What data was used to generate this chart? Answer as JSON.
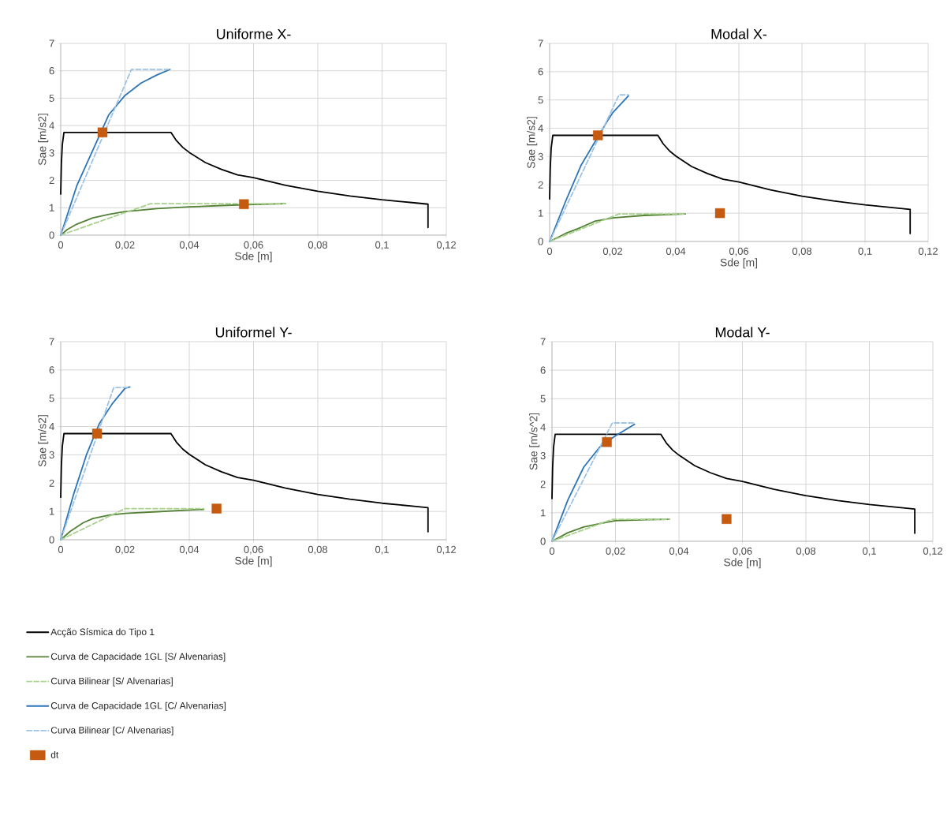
{
  "chart_data": [
    {
      "type": "line",
      "title": "Uniforme X-",
      "xlabel": "Sde [m]",
      "ylabel": "Sae [m/s2]",
      "xlim": [
        0,
        0.12
      ],
      "ylim": [
        0,
        7
      ],
      "grid": true,
      "xticks": [
        0,
        {
          "value": 0.02,
          "label": "0,02"
        },
        {
          "value": 0.04,
          "label": "0,04"
        },
        {
          "value": 0.06,
          "label": "0,06"
        },
        {
          "value": 0.08,
          "label": "0,08"
        },
        {
          "value": 0.1,
          "label": "0,1"
        },
        {
          "value": 0.12,
          "label": "0,12"
        }
      ],
      "yticks": [
        0,
        1,
        2,
        3,
        4,
        5,
        6,
        7
      ],
      "series": [
        {
          "color": "#000000",
          "x": [
            0,
            0.0002,
            0.0005,
            0.001,
            0.0343,
            0.036,
            0.038,
            0.04,
            0.045,
            0.05,
            0.055,
            0.06,
            0.07,
            0.08,
            0.09,
            0.1,
            0.11,
            0.1143,
            0.1143
          ],
          "values": [
            1.5,
            2.6,
            3.3,
            3.75,
            3.75,
            3.45,
            3.2,
            3.02,
            2.65,
            2.4,
            2.2,
            2.1,
            1.82,
            1.6,
            1.43,
            1.29,
            1.18,
            1.13,
            0.28
          ]
        },
        {
          "color": "#548235",
          "x": [
            0,
            0.002,
            0.005,
            0.01,
            0.015,
            0.02,
            0.03,
            0.04,
            0.05,
            0.06,
            0.07
          ],
          "values": [
            0,
            0.2,
            0.4,
            0.63,
            0.76,
            0.86,
            0.97,
            1.03,
            1.08,
            1.12,
            1.15
          ]
        },
        {
          "color": "#a9d18e",
          "line_style": "dashed",
          "x": [
            0,
            0.028,
            0.07
          ],
          "values": [
            0,
            1.15,
            1.15
          ]
        },
        {
          "color": "#2e75b6",
          "x": [
            0,
            0.005,
            0.01,
            0.015,
            0.02,
            0.025,
            0.03,
            0.034
          ],
          "values": [
            0,
            1.8,
            3.1,
            4.4,
            5.1,
            5.55,
            5.85,
            6.05
          ]
        },
        {
          "color": "#9dc3e6",
          "line_style": "dashed",
          "x": [
            0,
            0.022,
            0.034
          ],
          "values": [
            0,
            6.05,
            6.05
          ]
        },
        {
          "type": "scatter",
          "marker": "square",
          "color": "#c55a11",
          "x": [
            0.013,
            0.057
          ],
          "values": [
            3.75,
            1.13
          ]
        }
      ]
    },
    {
      "type": "line",
      "title": "Modal X-",
      "xlabel": "Sde [m]",
      "ylabel": "Sae [m/s2]",
      "xlim": [
        0,
        0.12
      ],
      "ylim": [
        0,
        7
      ],
      "grid": true,
      "xticks": [
        0,
        {
          "value": 0.02,
          "label": "0,02"
        },
        {
          "value": 0.04,
          "label": "0,04"
        },
        {
          "value": 0.06,
          "label": "0,06"
        },
        {
          "value": 0.08,
          "label": "0,08"
        },
        {
          "value": 0.1,
          "label": "0,1"
        },
        {
          "value": 0.12,
          "label": "0,12"
        }
      ],
      "yticks": [
        0,
        1,
        2,
        3,
        4,
        5,
        6,
        7
      ],
      "series": [
        {
          "color": "#000000",
          "x": [
            0,
            0.0002,
            0.0005,
            0.001,
            0.0343,
            0.036,
            0.038,
            0.04,
            0.045,
            0.05,
            0.055,
            0.06,
            0.07,
            0.08,
            0.09,
            0.1,
            0.11,
            0.1143,
            0.1143
          ],
          "values": [
            1.5,
            2.6,
            3.3,
            3.75,
            3.75,
            3.45,
            3.2,
            3.02,
            2.65,
            2.4,
            2.2,
            2.1,
            1.82,
            1.6,
            1.43,
            1.29,
            1.18,
            1.13,
            0.28
          ]
        },
        {
          "color": "#548235",
          "x": [
            0,
            0.005,
            0.01,
            0.0145,
            0.02,
            0.03,
            0.043
          ],
          "values": [
            0,
            0.28,
            0.5,
            0.72,
            0.83,
            0.92,
            0.97
          ]
        },
        {
          "color": "#a9d18e",
          "line_style": "dashed",
          "x": [
            0,
            0.022,
            0.043
          ],
          "values": [
            0,
            0.97,
            0.97
          ]
        },
        {
          "color": "#2e75b6",
          "x": [
            0,
            0.005,
            0.01,
            0.018,
            0.02,
            0.025
          ],
          "values": [
            0,
            1.4,
            2.7,
            4.2,
            4.55,
            5.15
          ]
        },
        {
          "color": "#9dc3e6",
          "line_style": "dashed",
          "x": [
            0,
            0.022,
            0.025
          ],
          "values": [
            0,
            5.18,
            5.18
          ]
        },
        {
          "type": "scatter",
          "marker": "square",
          "color": "#c55a11",
          "x": [
            0.0153,
            0.054
          ],
          "values": [
            3.75,
            1.0
          ]
        }
      ]
    },
    {
      "type": "line",
      "title": "Uniformel Y-",
      "xlabel": "Sde [m]",
      "ylabel": "Sae [m/s2]",
      "xlim": [
        0,
        0.12
      ],
      "ylim": [
        0,
        7
      ],
      "grid": true,
      "legend": "bottom",
      "xticks": [
        0,
        {
          "value": 0.02,
          "label": "0,02"
        },
        {
          "value": 0.04,
          "label": "0,04"
        },
        {
          "value": 0.06,
          "label": "0,06"
        },
        {
          "value": 0.08,
          "label": "0,08"
        },
        {
          "value": 0.1,
          "label": "0,1"
        },
        {
          "value": 0.12,
          "label": "0,12"
        }
      ],
      "yticks": [
        0,
        1,
        2,
        3,
        4,
        5,
        6,
        7
      ],
      "series": [
        {
          "name": "Acção Sísmica do Tipo 1",
          "color": "#000000",
          "x": [
            0,
            0.0002,
            0.0005,
            0.001,
            0.0343,
            0.036,
            0.038,
            0.04,
            0.045,
            0.05,
            0.055,
            0.06,
            0.07,
            0.08,
            0.09,
            0.1,
            0.11,
            0.1143,
            0.1143
          ],
          "values": [
            1.5,
            2.6,
            3.3,
            3.75,
            3.75,
            3.45,
            3.2,
            3.02,
            2.65,
            2.4,
            2.2,
            2.1,
            1.82,
            1.6,
            1.43,
            1.29,
            1.18,
            1.13,
            0.28
          ]
        },
        {
          "name": "Curva de Capacidade 1GL [S/ Alvenarias]",
          "color": "#548235",
          "x": [
            0,
            0.003,
            0.007,
            0.01,
            0.015,
            0.02,
            0.03,
            0.04,
            0.0445
          ],
          "values": [
            0,
            0.3,
            0.6,
            0.75,
            0.87,
            0.93,
            0.99,
            1.05,
            1.07
          ]
        },
        {
          "name": "Curva Bilinear [S/ Alvenarias]",
          "color": "#a9d18e",
          "line_style": "dashed",
          "x": [
            0,
            0.02,
            0.0445
          ],
          "values": [
            0,
            1.1,
            1.1
          ]
        },
        {
          "name": "Curva de Capacidade 1GL [C/ Alvenarias]",
          "color": "#2e75b6",
          "x": [
            0,
            0.004,
            0.008,
            0.012,
            0.016,
            0.02,
            0.0215
          ],
          "values": [
            0,
            1.6,
            3.0,
            4.1,
            4.8,
            5.35,
            5.4
          ]
        },
        {
          "name": "Curva Bilinear [C/ Alvenarias]",
          "color": "#9dc3e6",
          "line_style": "dashed",
          "x": [
            0,
            0.0165,
            0.0215
          ],
          "values": [
            0,
            5.38,
            5.38
          ]
        },
        {
          "name": "dt",
          "type": "scatter",
          "marker": "square",
          "color": "#c55a11",
          "x": [
            0.0113,
            0.0485
          ],
          "values": [
            3.75,
            1.1
          ]
        }
      ]
    },
    {
      "type": "line",
      "title": "Modal Y-",
      "xlabel": "Sde [m]",
      "ylabel": "Sae [m/s^2]",
      "xlim": [
        0,
        0.12
      ],
      "ylim": [
        0,
        7
      ],
      "grid": true,
      "xticks": [
        0,
        {
          "value": 0.02,
          "label": "0,02"
        },
        {
          "value": 0.04,
          "label": "0,04"
        },
        {
          "value": 0.06,
          "label": "0,06"
        },
        {
          "value": 0.08,
          "label": "0,08"
        },
        {
          "value": 0.1,
          "label": "0,1"
        },
        {
          "value": 0.12,
          "label": "0,12"
        }
      ],
      "yticks": [
        0,
        1,
        2,
        3,
        4,
        5,
        6,
        7
      ],
      "series": [
        {
          "color": "#000000",
          "x": [
            0,
            0.0002,
            0.0005,
            0.001,
            0.0343,
            0.036,
            0.038,
            0.04,
            0.045,
            0.05,
            0.055,
            0.06,
            0.07,
            0.08,
            0.09,
            0.1,
            0.11,
            0.1143,
            0.1143
          ],
          "values": [
            1.5,
            2.6,
            3.3,
            3.75,
            3.75,
            3.45,
            3.2,
            3.02,
            2.65,
            2.4,
            2.2,
            2.1,
            1.82,
            1.6,
            1.43,
            1.29,
            1.18,
            1.13,
            0.28
          ]
        },
        {
          "color": "#548235",
          "x": [
            0,
            0.005,
            0.01,
            0.015,
            0.02,
            0.03,
            0.037
          ],
          "values": [
            0,
            0.3,
            0.5,
            0.62,
            0.72,
            0.76,
            0.77
          ]
        },
        {
          "color": "#a9d18e",
          "line_style": "dashed",
          "x": [
            0,
            0.019,
            0.037
          ],
          "values": [
            0,
            0.77,
            0.77
          ]
        },
        {
          "color": "#2e75b6",
          "x": [
            0,
            0.005,
            0.01,
            0.015,
            0.02,
            0.026
          ],
          "values": [
            0,
            1.45,
            2.6,
            3.3,
            3.7,
            4.1
          ]
        },
        {
          "color": "#9dc3e6",
          "line_style": "dashed",
          "x": [
            0,
            0.019,
            0.026
          ],
          "values": [
            0,
            4.15,
            4.15
          ]
        },
        {
          "type": "scatter",
          "marker": "square",
          "color": "#c55a11",
          "x": [
            0.0173,
            0.055
          ],
          "values": [
            3.48,
            0.78
          ]
        }
      ]
    }
  ]
}
